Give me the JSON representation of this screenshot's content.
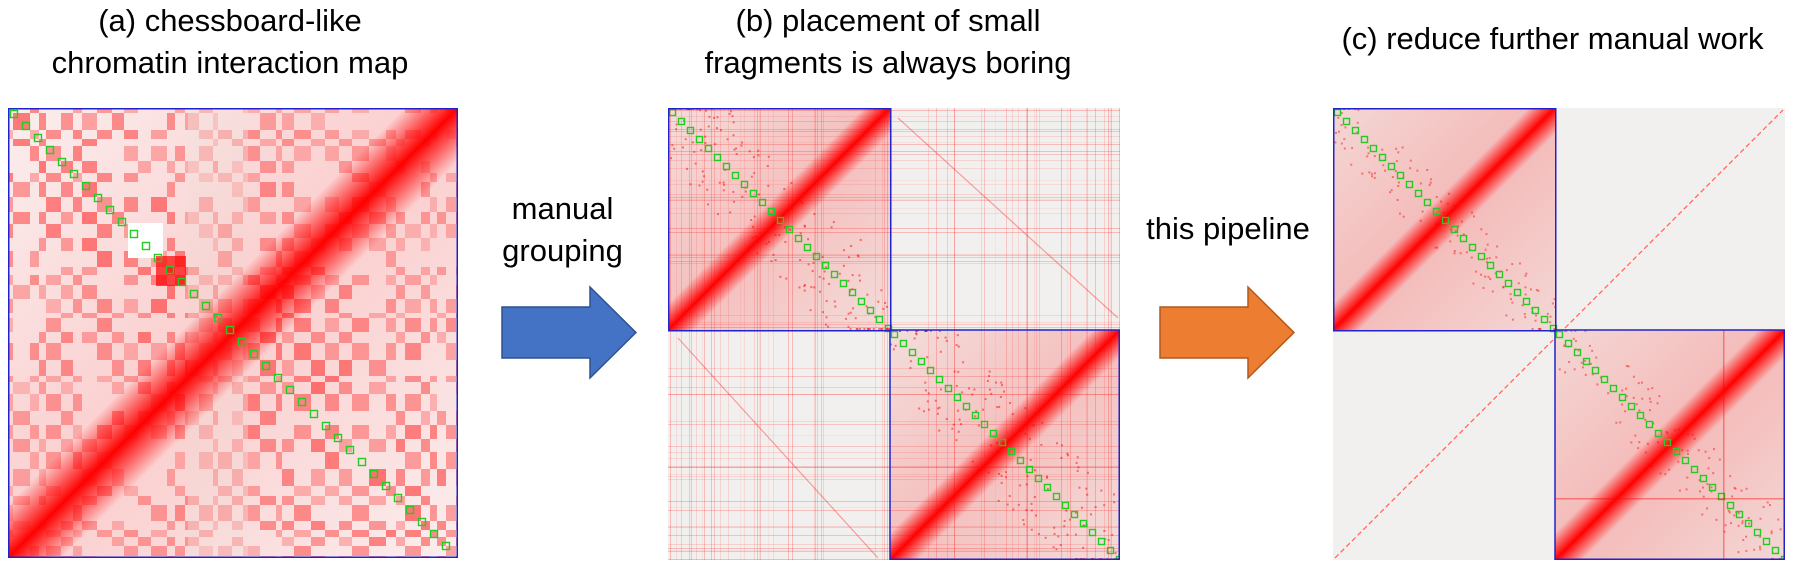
{
  "panels": {
    "a": {
      "title_line1": "(a) chessboard-like",
      "title_line2": "chromatin interaction map"
    },
    "b": {
      "title_line1": "(b) placement of small",
      "title_line2": "fragments is always boring"
    },
    "c": {
      "title_line1": "(c) reduce further manual work"
    }
  },
  "arrows": {
    "first": {
      "label_line1": "manual",
      "label_line2": "grouping",
      "color": "#4472c4",
      "stroke": "#2f528f"
    },
    "second": {
      "label_line1": "this pipeline",
      "color": "#ed7d31",
      "stroke": "#ae5a21"
    }
  },
  "colors": {
    "interaction": "#ff0000",
    "background_map": "#f2f0ee",
    "diagonal_marker": "#22cc22",
    "block_border": "#2222cc"
  }
}
